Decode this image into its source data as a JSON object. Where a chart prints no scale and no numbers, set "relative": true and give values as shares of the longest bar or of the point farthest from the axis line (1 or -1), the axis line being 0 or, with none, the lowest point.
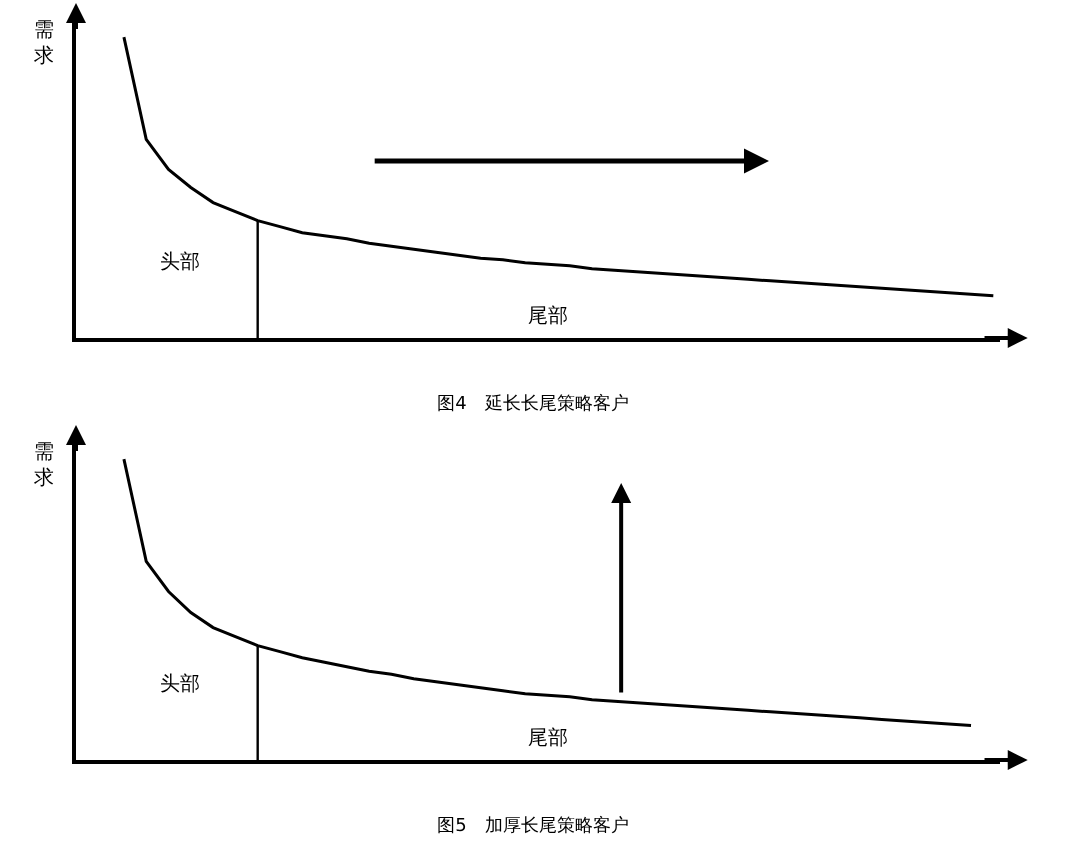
{
  "chart_data": [
    {
      "type": "line",
      "title": "图4　延长长尾策略客户",
      "ylabel": "需求",
      "annotations": [
        "头部",
        "尾部"
      ],
      "relative": true,
      "line_style": "solid",
      "categories": [
        null,
        null,
        null,
        null,
        null,
        null,
        null,
        null,
        null,
        null,
        null,
        null,
        null,
        null,
        null,
        null,
        null,
        null,
        null,
        null,
        null,
        null,
        null,
        null,
        null,
        null,
        null,
        null,
        null,
        null,
        null,
        null,
        null,
        null,
        null,
        null,
        null,
        null,
        null,
        null
      ],
      "series": [
        {
          "color": "#000000",
          "values": [
            1.0,
            0.66,
            0.56,
            0.5,
            0.45,
            0.42,
            0.39,
            0.37,
            0.35,
            0.34,
            0.33,
            0.315,
            0.305,
            0.295,
            0.285,
            0.275,
            0.265,
            0.26,
            0.25,
            0.245,
            0.24,
            0.23,
            0.225,
            0.22,
            0.215,
            0.21,
            0.205,
            0.2,
            0.195,
            0.19,
            0.185,
            0.18,
            0.175,
            0.17,
            0.165,
            0.16,
            0.155,
            0.15,
            0.145,
            0.14
          ]
        }
      ]
    },
    {
      "type": "line",
      "title": "图5　加厚长尾策略客户",
      "ylabel": "需求",
      "annotations": [
        "头部",
        "尾部"
      ],
      "relative": true,
      "line_style": "solid",
      "categories": [
        null,
        null,
        null,
        null,
        null,
        null,
        null,
        null,
        null,
        null,
        null,
        null,
        null,
        null,
        null,
        null,
        null,
        null,
        null,
        null,
        null,
        null,
        null,
        null,
        null,
        null,
        null,
        null,
        null,
        null,
        null,
        null,
        null,
        null,
        null,
        null,
        null,
        null,
        null
      ],
      "series": [
        {
          "color": "#000000",
          "values": [
            1.0,
            0.66,
            0.56,
            0.49,
            0.44,
            0.41,
            0.38,
            0.36,
            0.34,
            0.325,
            0.31,
            0.295,
            0.285,
            0.27,
            0.26,
            0.25,
            0.24,
            0.23,
            0.22,
            0.215,
            0.21,
            0.2,
            0.195,
            0.19,
            0.185,
            0.18,
            0.175,
            0.17,
            0.165,
            0.16,
            0.155,
            0.15,
            0.145,
            0.14,
            0.135,
            0.13,
            0.125,
            0.12,
            0.115
          ]
        }
      ]
    }
  ]
}
